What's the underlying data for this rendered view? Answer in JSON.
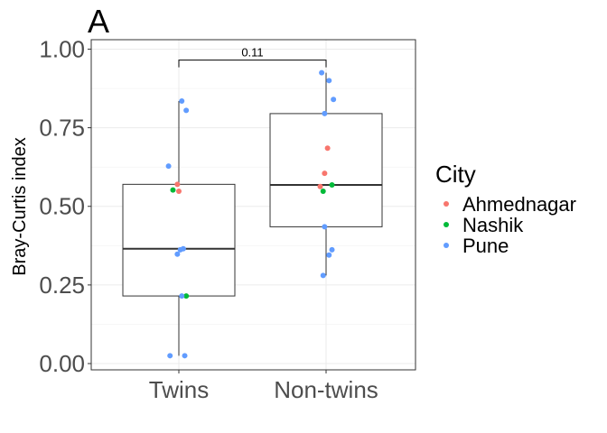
{
  "chart_data": {
    "type": "boxplot",
    "panel_label": "A",
    "ylabel": "Bray-Curtis index",
    "xlabel": "",
    "ylim": [
      -0.02,
      1.03
    ],
    "y_ticks": [
      "0.00",
      "0.25",
      "0.50",
      "0.75",
      "1.00"
    ],
    "y_tick_values": [
      0,
      0.25,
      0.5,
      0.75,
      1.0
    ],
    "grid": true,
    "legend": {
      "title": "City",
      "placement": "right",
      "entries": [
        {
          "name": "Ahmednagar",
          "color": "#F8766D"
        },
        {
          "name": "Nashik",
          "color": "#00BA38"
        },
        {
          "name": "Pune",
          "color": "#619CFF"
        }
      ]
    },
    "categories": [
      "Twins",
      "Non-twins"
    ],
    "boxes": [
      {
        "category": "Twins",
        "whisker_low": 0.025,
        "q1": 0.215,
        "median": 0.365,
        "q3": 0.57,
        "whisker_high": 0.835
      },
      {
        "category": "Non-twins",
        "whisker_low": 0.28,
        "q1": 0.435,
        "median": 0.568,
        "q3": 0.795,
        "whisker_high": 0.925
      }
    ],
    "points": [
      {
        "category": "Twins",
        "jitter": 0.02,
        "y": 0.835,
        "city": "Pune"
      },
      {
        "category": "Twins",
        "jitter": 0.05,
        "y": 0.805,
        "city": "Pune"
      },
      {
        "category": "Twins",
        "jitter": -0.07,
        "y": 0.628,
        "city": "Pune"
      },
      {
        "category": "Twins",
        "jitter": -0.01,
        "y": 0.57,
        "city": "Ahmednagar"
      },
      {
        "category": "Twins",
        "jitter": -0.04,
        "y": 0.552,
        "city": "Nashik"
      },
      {
        "category": "Twins",
        "jitter": 0.0,
        "y": 0.548,
        "city": "Ahmednagar"
      },
      {
        "category": "Twins",
        "jitter": 0.03,
        "y": 0.365,
        "city": "Pune"
      },
      {
        "category": "Twins",
        "jitter": 0.01,
        "y": 0.362,
        "city": "Pune"
      },
      {
        "category": "Twins",
        "jitter": -0.01,
        "y": 0.348,
        "city": "Pune"
      },
      {
        "category": "Twins",
        "jitter": 0.05,
        "y": 0.215,
        "city": "Nashik"
      },
      {
        "category": "Twins",
        "jitter": 0.02,
        "y": 0.215,
        "city": "Pune"
      },
      {
        "category": "Twins",
        "jitter": -0.06,
        "y": 0.025,
        "city": "Pune"
      },
      {
        "category": "Twins",
        "jitter": 0.04,
        "y": 0.025,
        "city": "Pune"
      },
      {
        "category": "Non-twins",
        "jitter": -0.03,
        "y": 0.925,
        "city": "Pune"
      },
      {
        "category": "Non-twins",
        "jitter": 0.02,
        "y": 0.9,
        "city": "Pune"
      },
      {
        "category": "Non-twins",
        "jitter": 0.05,
        "y": 0.84,
        "city": "Pune"
      },
      {
        "category": "Non-twins",
        "jitter": -0.01,
        "y": 0.795,
        "city": "Pune"
      },
      {
        "category": "Non-twins",
        "jitter": 0.01,
        "y": 0.685,
        "city": "Ahmednagar"
      },
      {
        "category": "Non-twins",
        "jitter": -0.01,
        "y": 0.605,
        "city": "Ahmednagar"
      },
      {
        "category": "Non-twins",
        "jitter": 0.04,
        "y": 0.568,
        "city": "Nashik"
      },
      {
        "category": "Non-twins",
        "jitter": -0.04,
        "y": 0.563,
        "city": "Ahmednagar"
      },
      {
        "category": "Non-twins",
        "jitter": -0.02,
        "y": 0.548,
        "city": "Nashik"
      },
      {
        "category": "Non-twins",
        "jitter": -0.01,
        "y": 0.435,
        "city": "Pune"
      },
      {
        "category": "Non-twins",
        "jitter": 0.04,
        "y": 0.362,
        "city": "Pune"
      },
      {
        "category": "Non-twins",
        "jitter": 0.02,
        "y": 0.345,
        "city": "Pune"
      },
      {
        "category": "Non-twins",
        "jitter": -0.02,
        "y": 0.28,
        "city": "Pune"
      }
    ],
    "comparison": {
      "groups": [
        "Twins",
        "Non-twins"
      ],
      "label": "0.11",
      "y": 0.965
    }
  }
}
